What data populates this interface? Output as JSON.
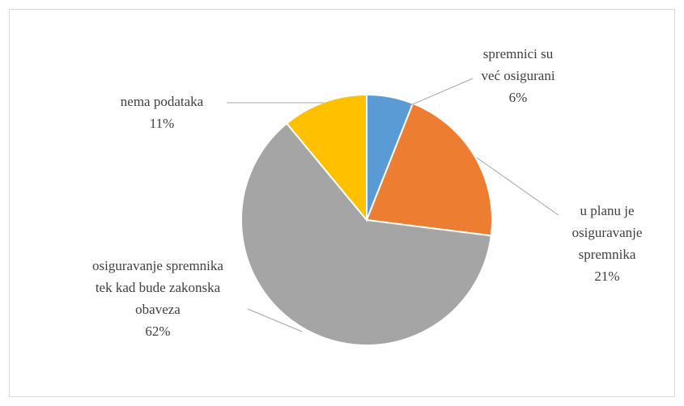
{
  "chart_data": {
    "type": "pie",
    "categories": [
      [
        "spremnici su",
        "već osigurani"
      ],
      [
        "u planu je",
        "osiguravanje",
        "spremnika"
      ],
      [
        "osiguravanje spremnika",
        "tek kad bude zakonska",
        "obaveza"
      ],
      [
        "nema podataka"
      ]
    ],
    "values": [
      6,
      21,
      62,
      11
    ],
    "value_labels": [
      "6%",
      "21%",
      "62%",
      "11%"
    ],
    "colors": [
      "#5b9bd5",
      "#ed7d31",
      "#a5a5a5",
      "#ffc000"
    ]
  }
}
